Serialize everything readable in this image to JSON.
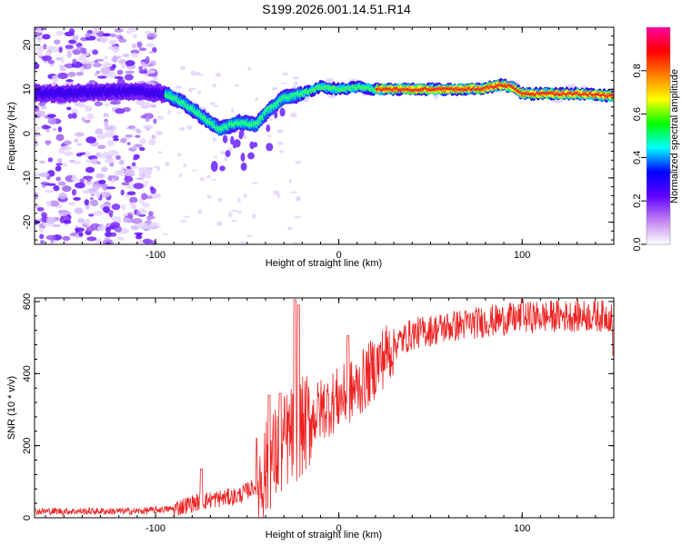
{
  "title": "S199.2026.001.14.51.R14",
  "chart_data": [
    {
      "type": "heatmap",
      "xlabel": "Height of straight line (km)",
      "ylabel": "Frequency (Hz)",
      "xlim": [
        -166,
        150
      ],
      "ylim": [
        -25,
        24
      ],
      "xticks": [
        -100,
        0,
        100
      ],
      "yticks": [
        -20,
        -10,
        0,
        10,
        20
      ],
      "colorbar": {
        "label": "Normalized spectral amplitude",
        "range": [
          0,
          1
        ],
        "ticks": [
          "0.0",
          "0.2",
          "0.4",
          "0.6",
          "0.8"
        ],
        "colors": [
          "#ffffff",
          "#c080f0",
          "#6000ff",
          "#0000ff",
          "#00ffff",
          "#00ff00",
          "#ffff00",
          "#ff8000",
          "#ff0000",
          "#ff00a0"
        ]
      },
      "ridge": [
        {
          "x": -166,
          "y": 9
        },
        {
          "x": -150,
          "y": 9
        },
        {
          "x": -130,
          "y": 9.5
        },
        {
          "x": -110,
          "y": 9.5
        },
        {
          "x": -95,
          "y": 9
        },
        {
          "x": -85,
          "y": 7
        },
        {
          "x": -75,
          "y": 4
        },
        {
          "x": -65,
          "y": 1
        },
        {
          "x": -55,
          "y": 2.5
        },
        {
          "x": -45,
          "y": 2
        },
        {
          "x": -38,
          "y": 5.5
        },
        {
          "x": -30,
          "y": 8
        },
        {
          "x": -20,
          "y": 9
        },
        {
          "x": -10,
          "y": 10.5
        },
        {
          "x": 0,
          "y": 10
        },
        {
          "x": 10,
          "y": 10.5
        },
        {
          "x": 20,
          "y": 10
        },
        {
          "x": 40,
          "y": 10
        },
        {
          "x": 60,
          "y": 10
        },
        {
          "x": 80,
          "y": 10.2
        },
        {
          "x": 88,
          "y": 11
        },
        {
          "x": 95,
          "y": 10.5
        },
        {
          "x": 100,
          "y": 9
        },
        {
          "x": 115,
          "y": 9
        },
        {
          "x": 130,
          "y": 9
        },
        {
          "x": 150,
          "y": 8.5
        }
      ],
      "noise_region": {
        "x": [
          -166,
          -100
        ],
        "y": [
          -25,
          24
        ]
      }
    },
    {
      "type": "line",
      "xlabel": "Height of straight line (km)",
      "ylabel": "SNR (10 * v/v)",
      "xlim": [
        -166,
        150
      ],
      "ylim": [
        0,
        610
      ],
      "xticks": [
        -100,
        0,
        100
      ],
      "yticks": [
        0,
        200,
        400,
        600
      ],
      "color": "#ee2222",
      "trend": [
        {
          "x": -166,
          "y": 18
        },
        {
          "x": -110,
          "y": 18
        },
        {
          "x": -90,
          "y": 25
        },
        {
          "x": -80,
          "y": 40
        },
        {
          "x": -70,
          "y": 50
        },
        {
          "x": -55,
          "y": 60
        },
        {
          "x": -45,
          "y": 90
        },
        {
          "x": -40,
          "y": 130
        },
        {
          "x": -35,
          "y": 170
        },
        {
          "x": -28,
          "y": 220
        },
        {
          "x": -20,
          "y": 250
        },
        {
          "x": -10,
          "y": 300
        },
        {
          "x": 0,
          "y": 330
        },
        {
          "x": 10,
          "y": 360
        },
        {
          "x": 20,
          "y": 420
        },
        {
          "x": 30,
          "y": 480
        },
        {
          "x": 40,
          "y": 510
        },
        {
          "x": 60,
          "y": 530
        },
        {
          "x": 80,
          "y": 545
        },
        {
          "x": 100,
          "y": 555
        },
        {
          "x": 120,
          "y": 560
        },
        {
          "x": 150,
          "y": 560
        }
      ],
      "peaks": [
        {
          "x": -75,
          "y": 135
        },
        {
          "x": -38,
          "y": 340
        },
        {
          "x": -32,
          "y": 345
        },
        {
          "x": -24,
          "y": 605
        },
        {
          "x": -22,
          "y": 590
        },
        {
          "x": 5,
          "y": 505
        },
        {
          "x": 100,
          "y": 605
        },
        {
          "x": 150,
          "y": 450
        }
      ]
    }
  ]
}
